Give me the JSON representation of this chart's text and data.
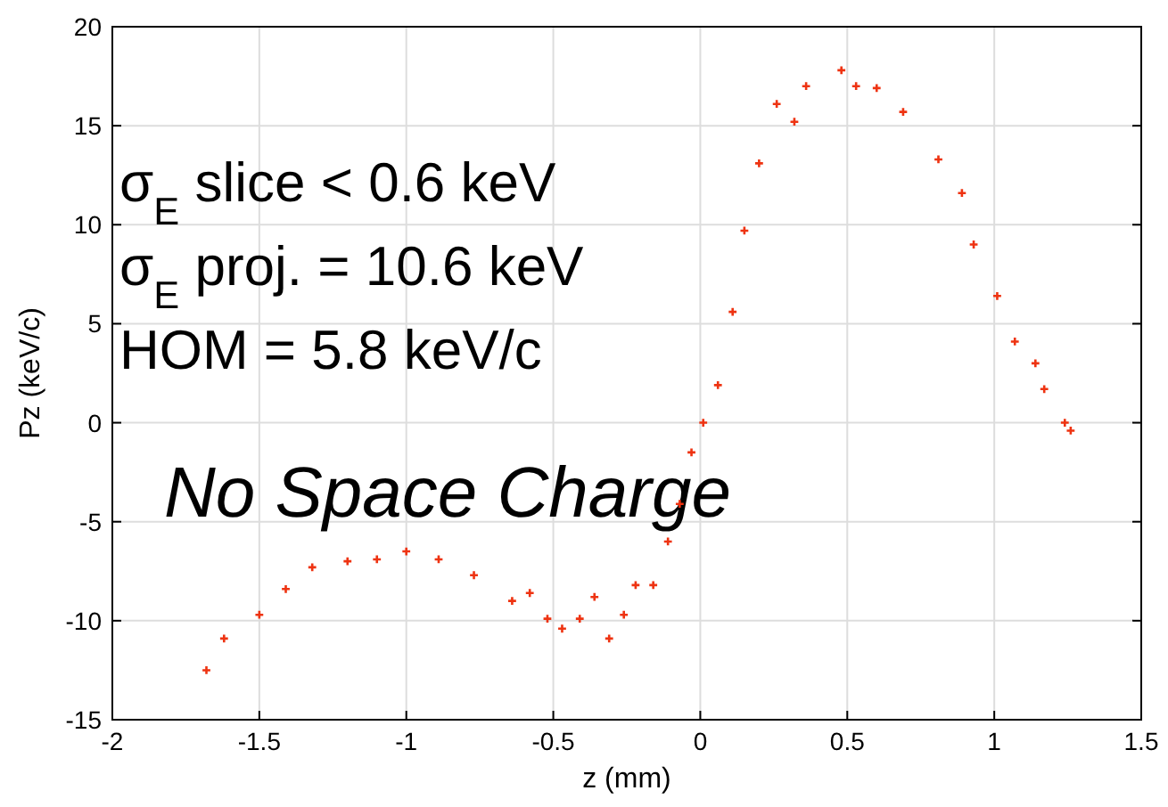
{
  "chart_data": {
    "type": "scatter",
    "xlabel": "z (mm)",
    "ylabel": "Pz (keV/c)",
    "annotations": [
      "σ$_{E}$ slice < 0.6 keV",
      "σ$_{E}$ proj. = 10.6 keV",
      "HOM = 5.8 keV/c",
      "No Space Charge"
    ],
    "xlim": [
      -2,
      1.5
    ],
    "xticks": [
      -2,
      -1.5,
      -1,
      -0.5,
      0,
      0.5,
      1,
      1.5
    ],
    "ylim": [
      -15,
      20
    ],
    "yticks": [
      -15,
      -10,
      -5,
      0,
      5,
      10,
      15,
      20
    ],
    "grid": true,
    "marker": "cross",
    "series": [
      {
        "color": "#ee3311",
        "x": [
          -1.68,
          -1.62,
          -1.5,
          -1.41,
          -1.32,
          -1.2,
          -1.1,
          -1,
          -0.89,
          -0.77,
          -0.64,
          -0.58,
          -0.52,
          -0.47,
          -0.41,
          -0.36,
          -0.31,
          -0.26,
          -0.22,
          -0.16,
          -0.11,
          -0.07,
          -0.03,
          0.01,
          0.06,
          0.11,
          0.15,
          0.2,
          0.26,
          0.32,
          0.36,
          0.48,
          0.53,
          0.6,
          0.69,
          0.81,
          0.89,
          0.93,
          1.01,
          1.07,
          1.14,
          1.17,
          1.24,
          1.26
        ],
        "values": [
          -12.5,
          -10.9,
          -9.7,
          -8.4,
          -7.3,
          -7,
          -6.9,
          -6.5,
          -6.9,
          -7.7,
          -9,
          -8.6,
          -9.9,
          -10.4,
          -9.9,
          -8.8,
          -10.9,
          -9.7,
          -8.2,
          -8.2,
          -6,
          -4.1,
          -1.5,
          0,
          1.9,
          5.6,
          9.7,
          13.1,
          16.1,
          15.2,
          17,
          17.8,
          17,
          16.9,
          15.7,
          13.3,
          11.6,
          9,
          6.4,
          4.1,
          3,
          1.7,
          0,
          -0.4
        ]
      }
    ]
  }
}
